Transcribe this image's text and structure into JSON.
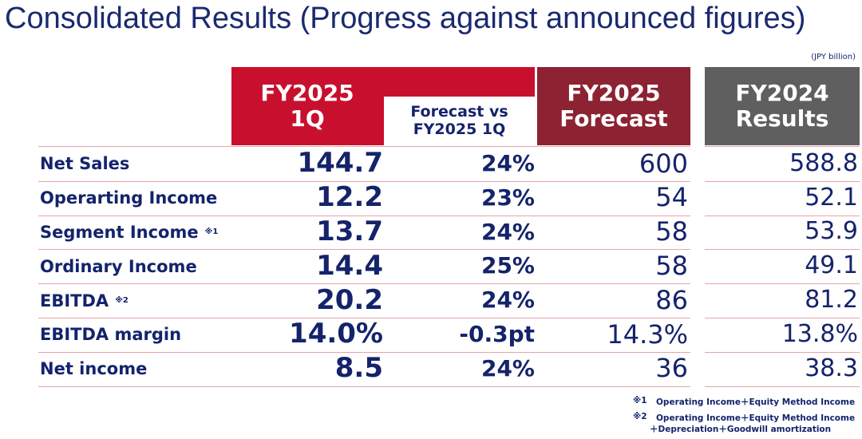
{
  "title": "Consolidated Results (Progress against announced figures)",
  "unit": "(JPY billion)",
  "headers": {
    "fy2025_1q": [
      "FY2025",
      "1Q"
    ],
    "forecast_vs": [
      "Forecast vs",
      "FY2025 1Q"
    ],
    "fy2025_forecast": [
      "FY2025",
      "Forecast"
    ],
    "fy2024_results": [
      "FY2024",
      "Results"
    ]
  },
  "rows": [
    {
      "label": "Net Sales",
      "values": [
        "144.7",
        "24%",
        "600",
        "588.8"
      ]
    },
    {
      "label": "Operarting Income",
      "values": [
        "12.2",
        "23%",
        "54",
        "52.1"
      ]
    },
    {
      "label": "Segment Income",
      "note": "※1",
      "values": [
        "13.7",
        "24%",
        "58",
        "53.9"
      ]
    },
    {
      "label": "Ordinary Income",
      "values": [
        "14.4",
        "25%",
        "58",
        "49.1"
      ]
    },
    {
      "label": "EBITDA",
      "note": "※2",
      "values": [
        "20.2",
        "24%",
        "86",
        "81.2"
      ]
    },
    {
      "label": "EBITDA margin",
      "values": [
        "14.0%",
        "-0.3pt",
        "14.3%",
        "13.8%"
      ]
    },
    {
      "label": "Net income",
      "values": [
        "8.5",
        "24%",
        "36",
        "38.3"
      ]
    }
  ],
  "footnotes": [
    {
      "mark": "※1",
      "lines": [
        "Operating Income＋Equity Method Income"
      ]
    },
    {
      "mark": "※2",
      "lines": [
        "Operating Income＋Equity Method Income",
        "＋Depreciation＋Goodwill amortization"
      ]
    }
  ]
}
